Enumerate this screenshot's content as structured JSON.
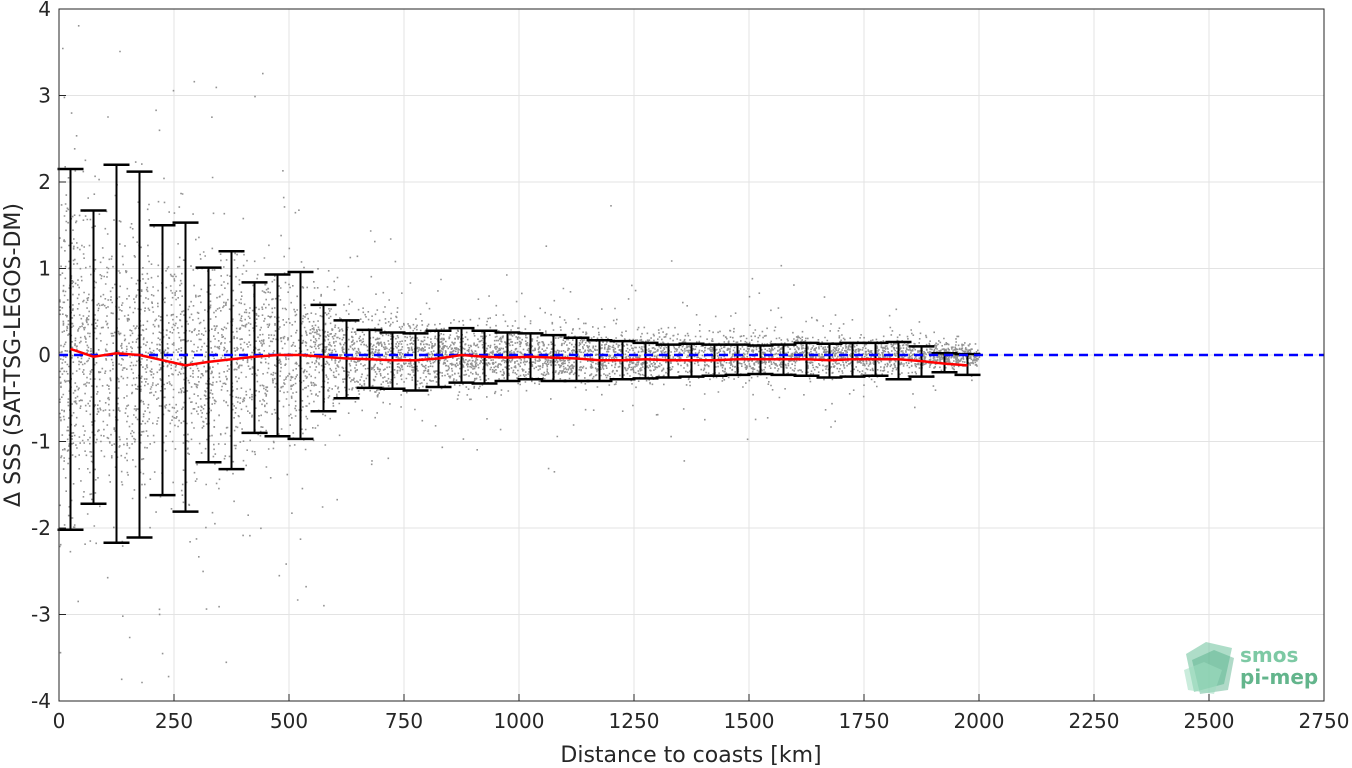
{
  "chart_data": {
    "type": "scatter",
    "title": "",
    "xlabel": "Distance to coasts [km]",
    "ylabel": "Δ SSS (SAT-TSG-LEGOS-DM)",
    "xlim": [
      0,
      2750
    ],
    "ylim": [
      -4,
      4
    ],
    "xticks": [
      0,
      250,
      500,
      750,
      1000,
      1250,
      1500,
      1750,
      2000,
      2250,
      2500,
      2750
    ],
    "yticks": [
      -4,
      -3,
      -2,
      -1,
      0,
      1,
      2,
      3,
      4
    ],
    "grid": true,
    "colors": {
      "scatter": "#808080",
      "errorbar": "#000000",
      "mean_line": "#ff0000",
      "zero_line": "#0000ff"
    },
    "scatter_description_std_envelope": {
      "x": [
        0,
        250,
        500,
        600,
        750,
        1000,
        1250,
        1500,
        1750,
        1900,
        2000
      ],
      "spread": [
        1.6,
        1.3,
        0.9,
        0.5,
        0.35,
        0.3,
        0.25,
        0.22,
        0.2,
        0.15,
        0.1
      ]
    },
    "errorbars": {
      "x": [
        25,
        75,
        125,
        175,
        225,
        275,
        325,
        375,
        425,
        475,
        525,
        575,
        625,
        675,
        725,
        775,
        825,
        875,
        925,
        975,
        1025,
        1075,
        1125,
        1175,
        1225,
        1275,
        1325,
        1375,
        1425,
        1475,
        1525,
        1575,
        1625,
        1675,
        1725,
        1775,
        1825,
        1875,
        1925,
        1975
      ],
      "upper": [
        2.15,
        1.67,
        2.2,
        2.12,
        1.5,
        1.53,
        1.01,
        1.2,
        0.84,
        0.93,
        0.96,
        0.58,
        0.4,
        0.29,
        0.26,
        0.25,
        0.28,
        0.31,
        0.28,
        0.26,
        0.25,
        0.23,
        0.2,
        0.17,
        0.16,
        0.14,
        0.12,
        0.13,
        0.12,
        0.12,
        0.11,
        0.12,
        0.14,
        0.13,
        0.14,
        0.14,
        0.15,
        0.1,
        0.02,
        0.01
      ],
      "lower": [
        -2.02,
        -1.72,
        -2.17,
        -2.11,
        -1.62,
        -1.81,
        -1.24,
        -1.32,
        -0.9,
        -0.94,
        -0.97,
        -0.65,
        -0.5,
        -0.38,
        -0.39,
        -0.41,
        -0.37,
        -0.32,
        -0.33,
        -0.3,
        -0.28,
        -0.3,
        -0.3,
        -0.3,
        -0.28,
        -0.27,
        -0.26,
        -0.25,
        -0.24,
        -0.23,
        -0.22,
        -0.23,
        -0.24,
        -0.26,
        -0.25,
        -0.24,
        -0.28,
        -0.25,
        -0.2,
        -0.23
      ]
    },
    "mean_line": {
      "x": [
        25,
        75,
        125,
        175,
        225,
        275,
        325,
        375,
        425,
        475,
        525,
        575,
        625,
        675,
        725,
        775,
        825,
        875,
        925,
        975,
        1025,
        1075,
        1125,
        1175,
        1225,
        1275,
        1325,
        1375,
        1425,
        1475,
        1525,
        1575,
        1625,
        1675,
        1725,
        1775,
        1825,
        1875,
        1925,
        1975
      ],
      "y": [
        0.07,
        -0.02,
        0.02,
        0.0,
        -0.06,
        -0.12,
        -0.08,
        -0.05,
        -0.02,
        0.0,
        0.0,
        -0.02,
        -0.04,
        -0.05,
        -0.06,
        -0.06,
        -0.04,
        0.0,
        -0.02,
        -0.03,
        -0.02,
        -0.03,
        -0.04,
        -0.06,
        -0.06,
        -0.05,
        -0.06,
        -0.06,
        -0.06,
        -0.05,
        -0.05,
        -0.05,
        -0.05,
        -0.06,
        -0.05,
        -0.05,
        -0.05,
        -0.07,
        -0.1,
        -0.12
      ]
    },
    "zero_line": {
      "y": 0,
      "x_range": [
        0,
        2750
      ]
    }
  },
  "logo": {
    "line1": "smos",
    "line2": "pi-mep"
  }
}
